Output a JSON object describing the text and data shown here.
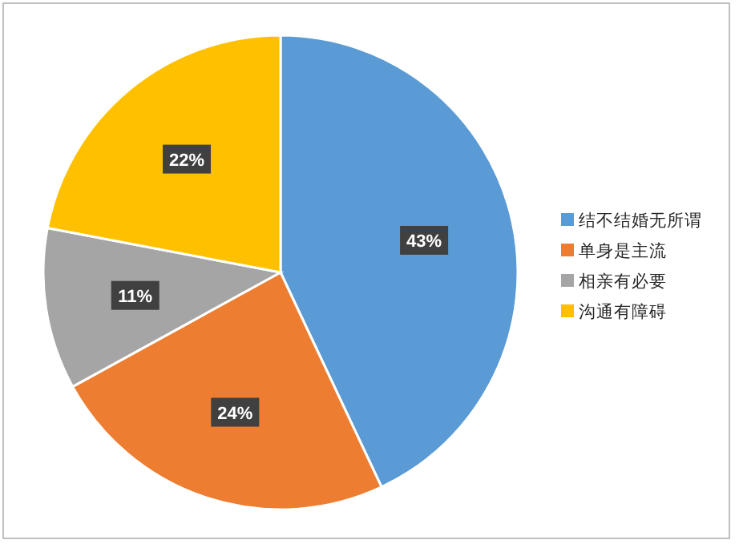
{
  "chart_data": {
    "type": "pie",
    "categories": [
      "结不结婚无所谓",
      "单身是主流",
      "相亲有必要",
      "沟通有障碍"
    ],
    "values": [
      43,
      24,
      11,
      22
    ],
    "colors": [
      "#5b9bd5",
      "#ed7d31",
      "#a5a5a5",
      "#ffc000"
    ],
    "value_labels": [
      "43%",
      "24%",
      "11%",
      "22%"
    ],
    "legend": "right"
  }
}
